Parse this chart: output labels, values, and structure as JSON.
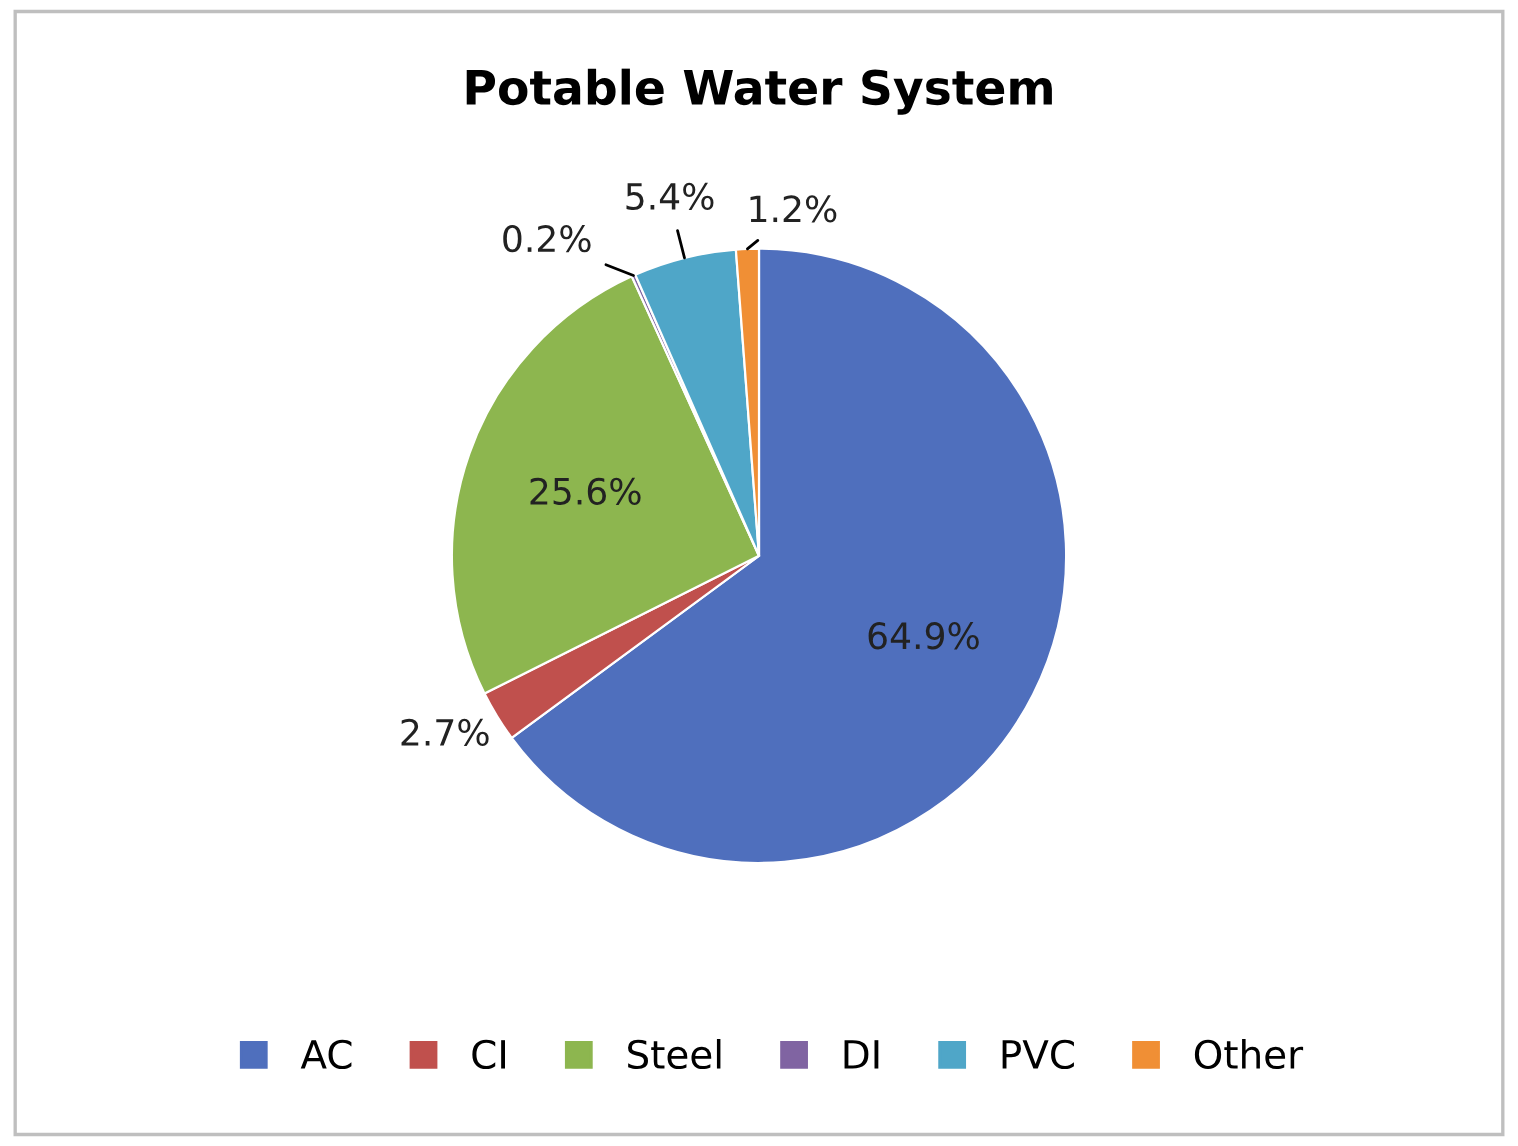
{
  "chart_data": {
    "type": "pie",
    "title": "Potable Water System",
    "categories": [
      "AC",
      "CI",
      "Steel",
      "DI",
      "PVC",
      "Other"
    ],
    "values": [
      64.9,
      2.7,
      25.6,
      0.2,
      5.4,
      1.2
    ],
    "colors": [
      "#4f6fbd",
      "#c0504d",
      "#8db64f",
      "#8064a2",
      "#4fa6c8",
      "#f08f35"
    ],
    "value_labels": [
      "64.9%",
      "2.7%",
      "25.6%",
      "0.2%",
      "5.4%",
      "1.2%"
    ],
    "legend": "bottom"
  }
}
